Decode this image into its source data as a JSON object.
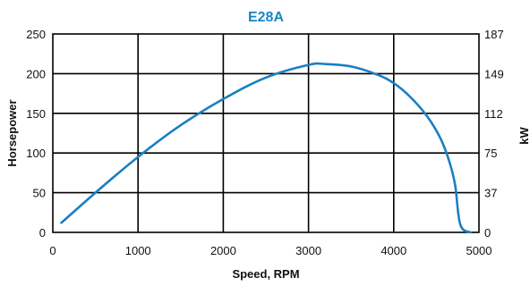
{
  "chart_data": {
    "type": "line",
    "title": "E28A",
    "xlabel": "Speed, RPM",
    "ylabel": "Horsepower",
    "y2label": "kW",
    "xlim": [
      0,
      5000
    ],
    "ylim": [
      0,
      250
    ],
    "x_ticks": [
      "0",
      "1000",
      "2000",
      "3000",
      "4000",
      "5000"
    ],
    "y_ticks": [
      "0",
      "50",
      "100",
      "150",
      "200",
      "250"
    ],
    "y2_ticks": [
      "0",
      "37",
      "75",
      "112",
      "149",
      "187"
    ],
    "grid": true,
    "colors": {
      "line": "#1a7fc1",
      "title": "#1a86c8"
    },
    "series": [
      {
        "x": [
          100,
          500,
          1000,
          1500,
          2000,
          2500,
          3000,
          3200,
          3500,
          3800,
          4000,
          4200,
          4400,
          4550,
          4650,
          4720,
          4780,
          4900
        ],
        "values": [
          12,
          50,
          95,
          135,
          168,
          195,
          211,
          212,
          209,
          199,
          188,
          170,
          145,
          118,
          90,
          60,
          10,
          0
        ]
      }
    ]
  }
}
